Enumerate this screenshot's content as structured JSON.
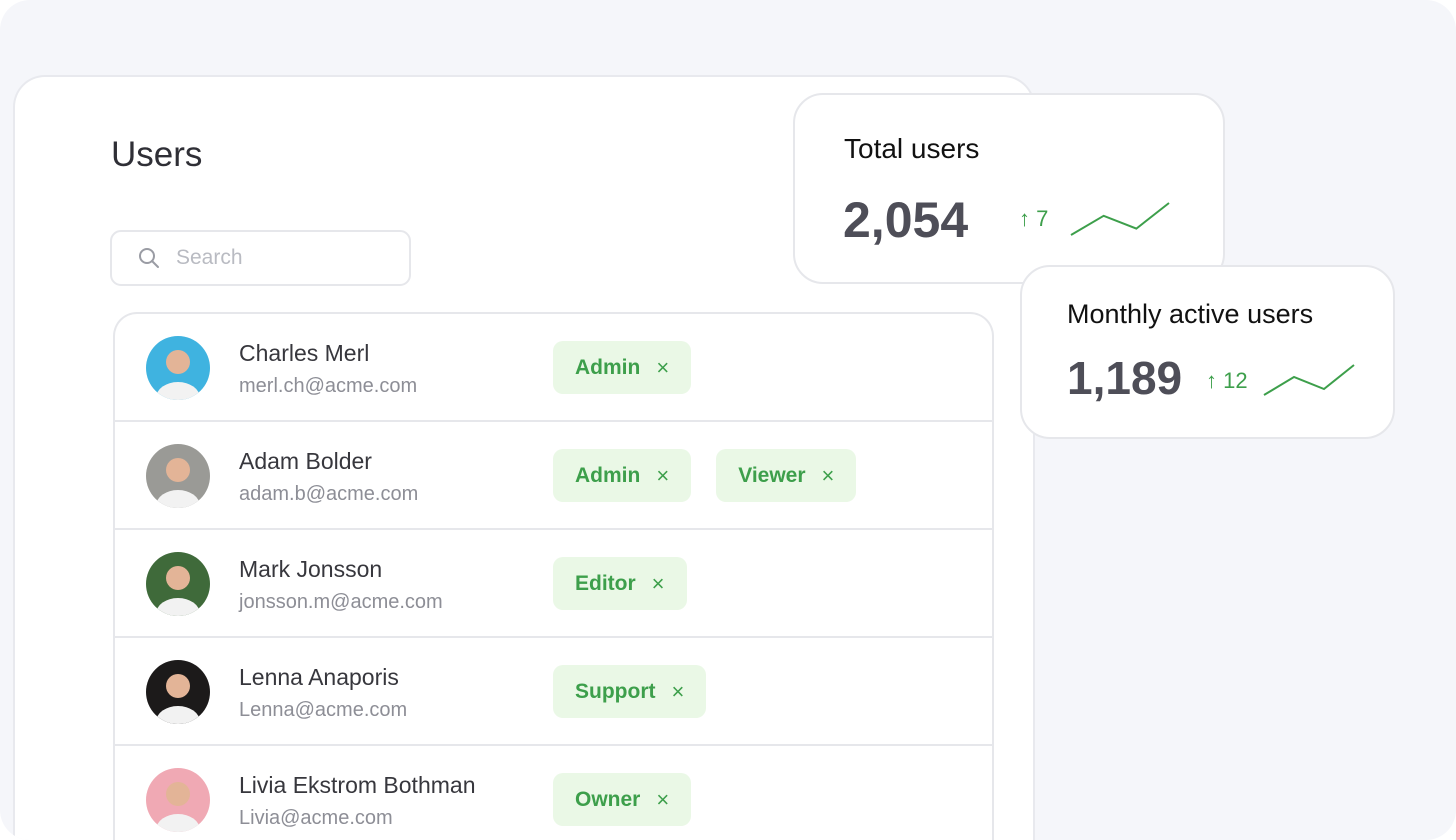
{
  "page": {
    "title": "Users"
  },
  "search": {
    "placeholder": "Search",
    "value": ""
  },
  "users": [
    {
      "name": "Charles Merl",
      "email": "merl.ch@acme.com",
      "roles": [
        "Admin"
      ],
      "avatar_color": "#3fb3e0"
    },
    {
      "name": "Adam Bolder",
      "email": "adam.b@acme.com",
      "roles": [
        "Admin",
        "Viewer"
      ],
      "avatar_color": "#9a9a96"
    },
    {
      "name": "Mark Jonsson",
      "email": "jonsson.m@acme.com",
      "roles": [
        "Editor"
      ],
      "avatar_color": "#3f6a3a"
    },
    {
      "name": "Lenna Anaporis",
      "email": "Lenna@acme.com",
      "roles": [
        "Support"
      ],
      "avatar_color": "#1c1a1a"
    },
    {
      "name": "Livia Ekstrom Bothman",
      "email": "Livia@acme.com",
      "roles": [
        "Owner"
      ],
      "avatar_color": "#f0a9b4"
    }
  ],
  "remove_icon": "×",
  "stats": {
    "total_users": {
      "label": "Total users",
      "value": "2,054",
      "delta": "7",
      "trend": [
        0,
        3,
        1,
        5
      ]
    },
    "monthly_active": {
      "label": "Monthly active users",
      "value": "1,189",
      "delta": "12",
      "trend": [
        0,
        3,
        1,
        5
      ]
    }
  },
  "colors": {
    "accent": "#3d9f4b",
    "tag_bg": "#eaf8e6"
  }
}
